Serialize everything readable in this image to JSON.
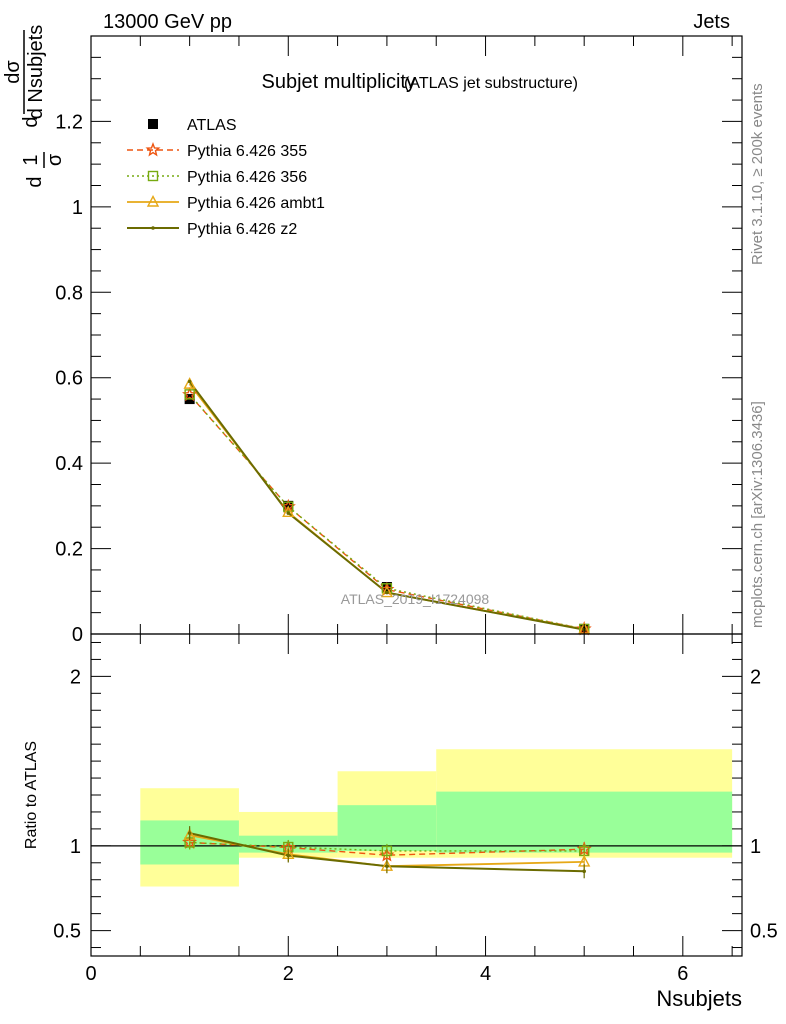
{
  "header": {
    "beam": "13000 GeV pp",
    "process": "Jets",
    "title": "Subjet multiplicity",
    "subtitle": "(ATLAS jet substructure)",
    "analysis_id": "ATLAS_2019_I1724098",
    "side_rivet": "Rivet 3.1.10, ≥ 200k events",
    "side_mcplots": "mcplots.cern.ch [arXiv:1306.3436]"
  },
  "colors": {
    "atlas": "#000000",
    "p355": "#ee5511",
    "p356": "#77aa11",
    "ambt1": "#e6a817",
    "z2": "#6b6b00",
    "band_inner": "#99ff99",
    "band_outer": "#ffff99"
  },
  "chart_data": [
    {
      "type": "line",
      "name": "main",
      "xlabel": "",
      "ylabel_numer": "dσ",
      "ylabel_denom": "d Nsubjets",
      "ylabel_prefix_numer": "1",
      "ylabel_prefix_denom": "σ",
      "ylabel_prefix_d": "d",
      "xlim": [
        0,
        6.6
      ],
      "ylim": [
        0,
        1.4
      ],
      "yticks": [
        0,
        0.2,
        0.4,
        0.6,
        0.8,
        1,
        1.2
      ],
      "ytick_labels": [
        "0",
        "0.2",
        "0.4",
        "0.6",
        "0.8",
        "1",
        "1.2"
      ],
      "legend_position": "top-left",
      "series": [
        {
          "name": "ATLAS",
          "key": "atlas",
          "x": [
            1,
            2,
            3,
            5
          ],
          "y": [
            0.55,
            0.3,
            0.11,
            0.012
          ]
        },
        {
          "name": "Pythia 6.426 355",
          "key": "p355",
          "x": [
            1,
            2,
            3,
            5
          ],
          "y": [
            0.56,
            0.298,
            0.104,
            0.0118
          ]
        },
        {
          "name": "Pythia 6.426 356",
          "key": "p356",
          "x": [
            1,
            2,
            3,
            5
          ],
          "y": [
            0.561,
            0.298,
            0.107,
            0.0117
          ]
        },
        {
          "name": "Pythia 6.426 ambt1",
          "key": "ambt1",
          "x": [
            1,
            2,
            3,
            5
          ],
          "y": [
            0.585,
            0.285,
            0.097,
            0.011
          ]
        },
        {
          "name": "Pythia 6.426 z2",
          "key": "z2",
          "x": [
            1,
            2,
            3,
            5
          ],
          "y": [
            0.591,
            0.283,
            0.097,
            0.0102
          ]
        }
      ]
    },
    {
      "type": "line",
      "name": "ratio",
      "xlabel": "Nsubjets",
      "ylabel": "Ratio to ATLAS",
      "xlim": [
        0,
        6.6
      ],
      "ylim": [
        0.35,
        2.25
      ],
      "xticks": [
        0,
        2,
        4,
        6
      ],
      "xtick_labels": [
        "0",
        "2",
        "4",
        "6"
      ],
      "yticks": [
        0.5,
        1,
        2
      ],
      "ytick_labels": [
        "0.5",
        "1",
        "2"
      ],
      "bands": {
        "edges": [
          0.5,
          1.5,
          2.5,
          3.5,
          6.5
        ],
        "inner": [
          [
            0.89,
            1.15
          ],
          [
            0.96,
            1.06
          ],
          [
            0.97,
            1.24
          ],
          [
            0.96,
            1.32
          ]
        ],
        "outer": [
          [
            0.76,
            1.34
          ],
          [
            0.93,
            1.2
          ],
          [
            0.93,
            1.44
          ],
          [
            0.93,
            1.57
          ]
        ]
      },
      "series": [
        {
          "name": "Pythia 6.426 355",
          "key": "p355",
          "x": [
            1,
            2,
            3,
            5
          ],
          "y": [
            1.02,
            0.99,
            0.945,
            0.98
          ]
        },
        {
          "name": "Pythia 6.426 356",
          "key": "p356",
          "x": [
            1,
            2,
            3,
            5
          ],
          "y": [
            1.02,
            0.993,
            0.97,
            0.97
          ]
        },
        {
          "name": "Pythia 6.426 ambt1",
          "key": "ambt1",
          "x": [
            1,
            2,
            3,
            5
          ],
          "y": [
            1.063,
            0.95,
            0.88,
            0.905
          ]
        },
        {
          "name": "Pythia 6.426 z2",
          "key": "z2",
          "x": [
            1,
            2,
            3,
            5
          ],
          "y": [
            1.075,
            0.943,
            0.88,
            0.85
          ]
        }
      ]
    }
  ]
}
